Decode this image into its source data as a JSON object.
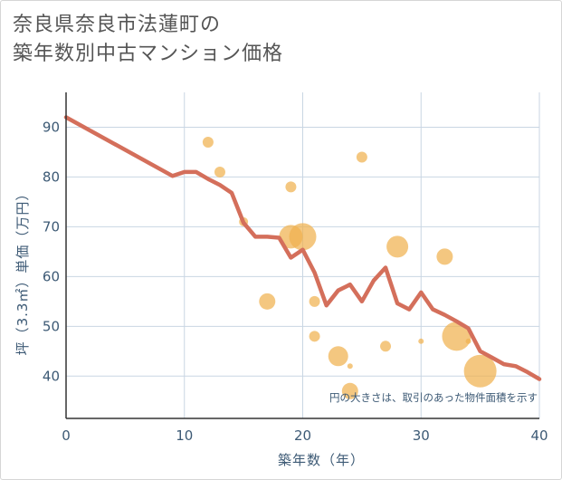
{
  "title_line1": "奈良県奈良市法蓮町の",
  "title_line2": "築年数別中古マンション価格",
  "chart_data": {
    "type": "scatter",
    "title": "奈良県奈良市法蓮町の築年数別中古マンション価格",
    "xlabel": "築年数（年）",
    "ylabel": "坪（3.3㎡）単価（万円）",
    "xlim": [
      0,
      40
    ],
    "ylim": [
      31.5,
      97
    ],
    "xticks": [
      0,
      10,
      20,
      30,
      40
    ],
    "yticks": [
      40,
      50,
      60,
      70,
      80,
      90
    ],
    "grid": true,
    "note": "円の大きさは、取引のあった物件面積を示す",
    "colors": {
      "trend": "#d46f5b",
      "bubble": "#f0b24f",
      "grid": "#c9d6e3",
      "axis_text": "#3d5a75"
    },
    "series": [
      {
        "name": "trend",
        "type": "line",
        "x": [
          0,
          9,
          10,
          11,
          12,
          13,
          14,
          15,
          16,
          17,
          18,
          19,
          20,
          21,
          22,
          23,
          24,
          25,
          26,
          27,
          28,
          29,
          30,
          31,
          32,
          33,
          34,
          35,
          36,
          37,
          38,
          39,
          40
        ],
        "y": [
          92,
          80.2,
          81,
          81,
          79.6,
          78.4,
          76.8,
          70.8,
          68,
          68,
          67.8,
          63.8,
          65.4,
          60.8,
          54.2,
          57.2,
          58.4,
          55,
          59.2,
          61.8,
          54.6,
          53.4,
          56.8,
          53.4,
          52.3,
          51,
          49.6,
          45,
          43.7,
          42.4,
          42,
          40.8,
          39.4
        ]
      },
      {
        "name": "transactions",
        "type": "bubble",
        "points": [
          {
            "x": 12,
            "y": 87,
            "size": 6
          },
          {
            "x": 13,
            "y": 81,
            "size": 6
          },
          {
            "x": 15,
            "y": 71,
            "size": 5
          },
          {
            "x": 17,
            "y": 55,
            "size": 9
          },
          {
            "x": 19,
            "y": 78,
            "size": 6
          },
          {
            "x": 19,
            "y": 68,
            "size": 13
          },
          {
            "x": 20,
            "y": 68,
            "size": 15
          },
          {
            "x": 21,
            "y": 55,
            "size": 6
          },
          {
            "x": 21,
            "y": 48,
            "size": 6
          },
          {
            "x": 23,
            "y": 44,
            "size": 11
          },
          {
            "x": 24,
            "y": 42,
            "size": 3
          },
          {
            "x": 24,
            "y": 37,
            "size": 9
          },
          {
            "x": 25,
            "y": 84,
            "size": 6
          },
          {
            "x": 27,
            "y": 46,
            "size": 6
          },
          {
            "x": 28,
            "y": 66,
            "size": 12
          },
          {
            "x": 30,
            "y": 47,
            "size": 3
          },
          {
            "x": 32,
            "y": 64,
            "size": 9
          },
          {
            "x": 33,
            "y": 48,
            "size": 16
          },
          {
            "x": 35,
            "y": 41,
            "size": 18
          },
          {
            "x": 34,
            "y": 47,
            "size": 3
          }
        ]
      }
    ]
  }
}
